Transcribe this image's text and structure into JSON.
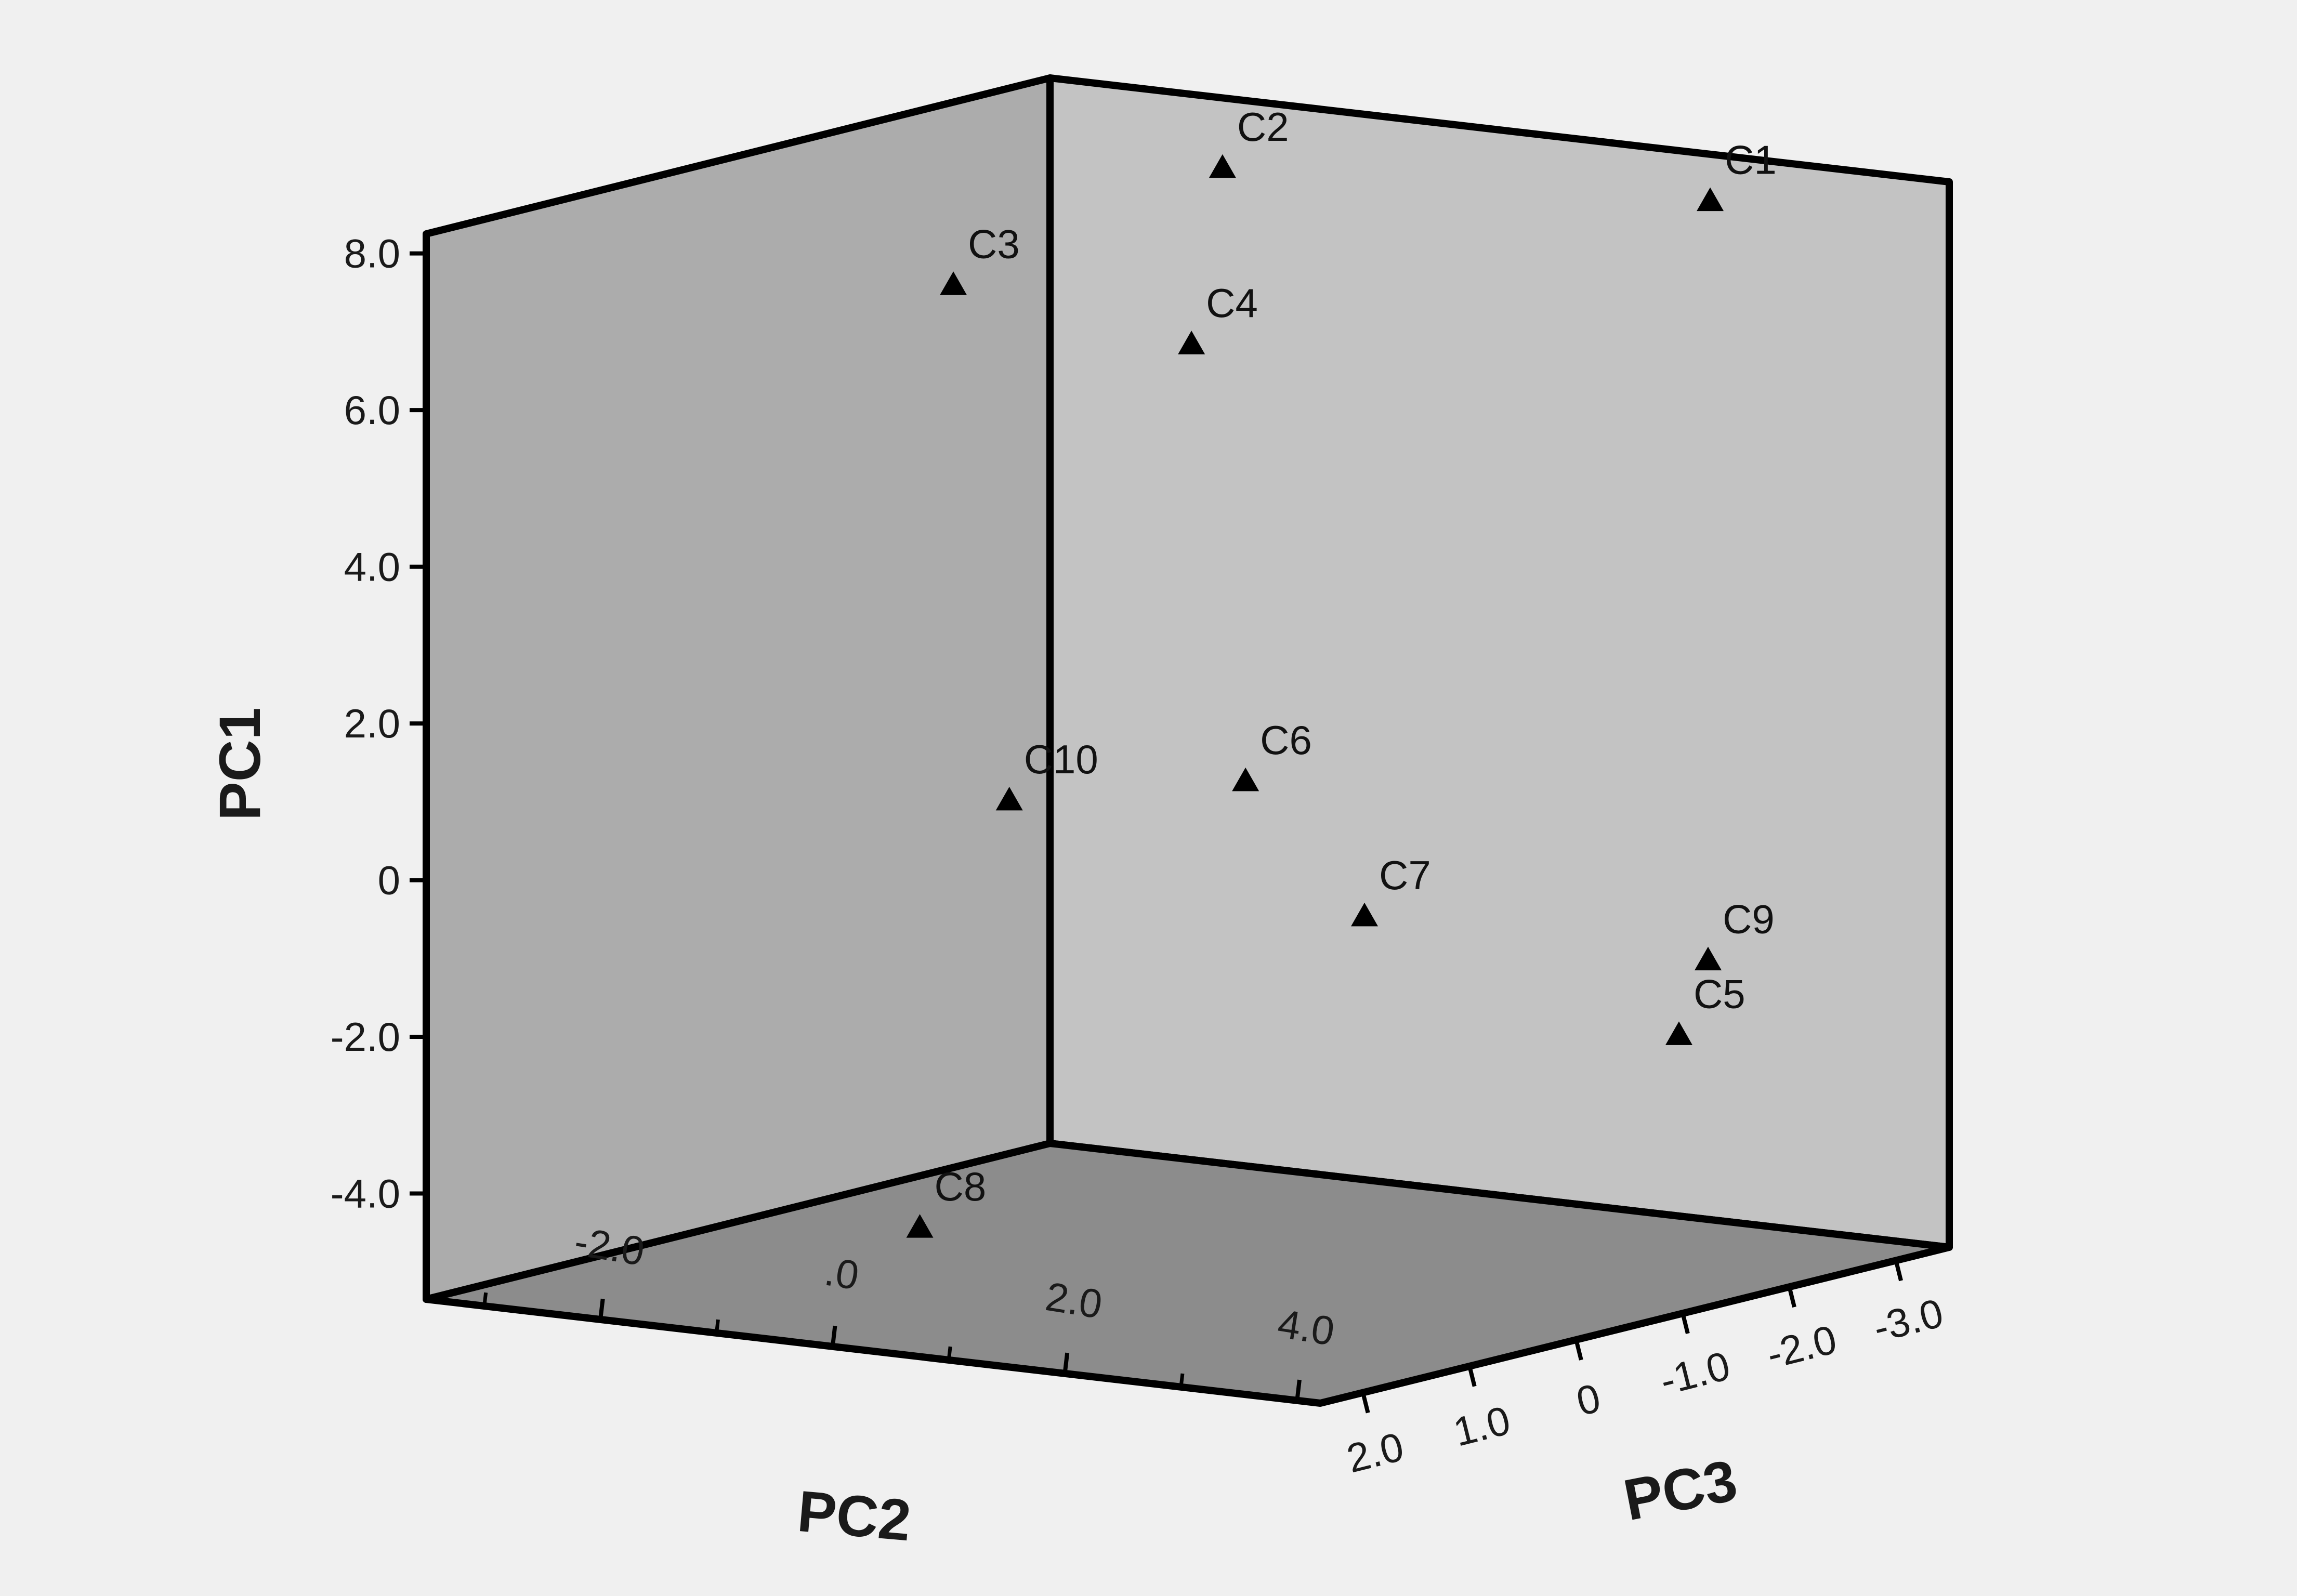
{
  "chart_data": {
    "type": "scatter",
    "projection": "3d",
    "title": "",
    "grid": false,
    "legend": "none",
    "axes": {
      "x": {
        "label": "PC2",
        "ticks": [
          "-2.0",
          ".0",
          "2.0",
          "4.0"
        ]
      },
      "y": {
        "label": "PC3",
        "ticks": [
          "2.0",
          "1.0",
          "0",
          "-1.0",
          "-2.0",
          "-3.0"
        ]
      },
      "z": {
        "label": "PC1",
        "ticks": [
          "8.0",
          "6.0",
          "4.0",
          "2.0",
          "0",
          "-2.0",
          "-4.0"
        ]
      }
    },
    "marker": "triangle",
    "points": [
      {
        "label": "C1",
        "pc2": 2.6,
        "pc3": -3.0,
        "pc1": 7.9
      },
      {
        "label": "C2",
        "pc2": -1.6,
        "pc3": -3.0,
        "pc1": 7.6
      },
      {
        "label": "C3",
        "pc2": -3.0,
        "pc3": -2.0,
        "pc1": 6.2
      },
      {
        "label": "C4",
        "pc2": -1.5,
        "pc3": -2.6,
        "pc1": 5.5
      },
      {
        "label": "C5",
        "pc2": 3.8,
        "pc3": -1.4,
        "pc1": -2.0
      },
      {
        "label": "C6",
        "pc2": -0.3,
        "pc3": -1.8,
        "pc1": 0.4
      },
      {
        "label": "C7",
        "pc2": 1.0,
        "pc3": -1.5,
        "pc1": -1.0
      },
      {
        "label": "C8",
        "pc2": 0.2,
        "pc3": 1.8,
        "pc1": -4.0
      },
      {
        "label": "C9",
        "pc2": 3.5,
        "pc3": -2.0,
        "pc1": -1.3
      },
      {
        "label": "C10",
        "pc2": -1.6,
        "pc3": -1.0,
        "pc1": 0.2
      }
    ]
  },
  "colors": {
    "background": "#f0f0f0",
    "left_wall": "#acacac",
    "right_wall": "#c3c3c3",
    "floor": "#8c8c8c",
    "edges": "#000000",
    "marker": "#000000"
  }
}
